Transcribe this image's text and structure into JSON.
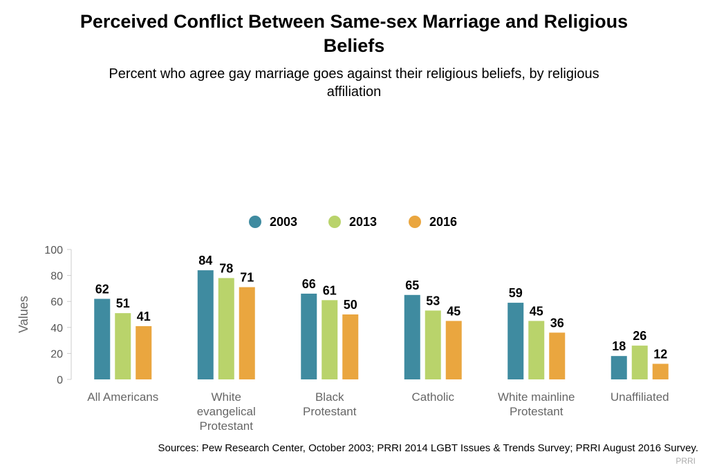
{
  "title_lines": [
    "Perceived Conflict Between Same-sex Marriage and Religious",
    "Beliefs"
  ],
  "subtitle_lines": [
    "Percent who agree gay marriage goes against their religious beliefs, by religious",
    "affiliation"
  ],
  "source": "Sources: Pew Research Center, October 2003; PRRI 2014 LGBT Issues & Trends Survey; PRRI August 2016 Survey.",
  "credit": "PRRI",
  "chart_data": {
    "type": "bar",
    "title": "Perceived Conflict Between Same-sex Marriage and Religious Beliefs",
    "subtitle": "Percent who agree gay marriage goes against their religious beliefs, by religious affiliation",
    "xlabel": "",
    "ylabel": "Values",
    "ylim": [
      0,
      100
    ],
    "yticks": [
      0,
      20,
      40,
      60,
      80,
      100
    ],
    "grid": false,
    "legend_position": "top-center",
    "categories": [
      [
        "All Americans"
      ],
      [
        "White",
        "evangelical",
        "Protestant"
      ],
      [
        "Black",
        "Protestant"
      ],
      [
        "Catholic"
      ],
      [
        "White mainline",
        "Protestant"
      ],
      [
        "Unaffiliated"
      ]
    ],
    "series": [
      {
        "name": "2003",
        "color": "#3f8ba0",
        "values": [
          62,
          84,
          66,
          65,
          59,
          18
        ]
      },
      {
        "name": "2013",
        "color": "#b9d36b",
        "values": [
          51,
          78,
          61,
          53,
          45,
          26
        ]
      },
      {
        "name": "2016",
        "color": "#eaa63f",
        "values": [
          41,
          71,
          50,
          45,
          36,
          12
        ]
      }
    ]
  }
}
